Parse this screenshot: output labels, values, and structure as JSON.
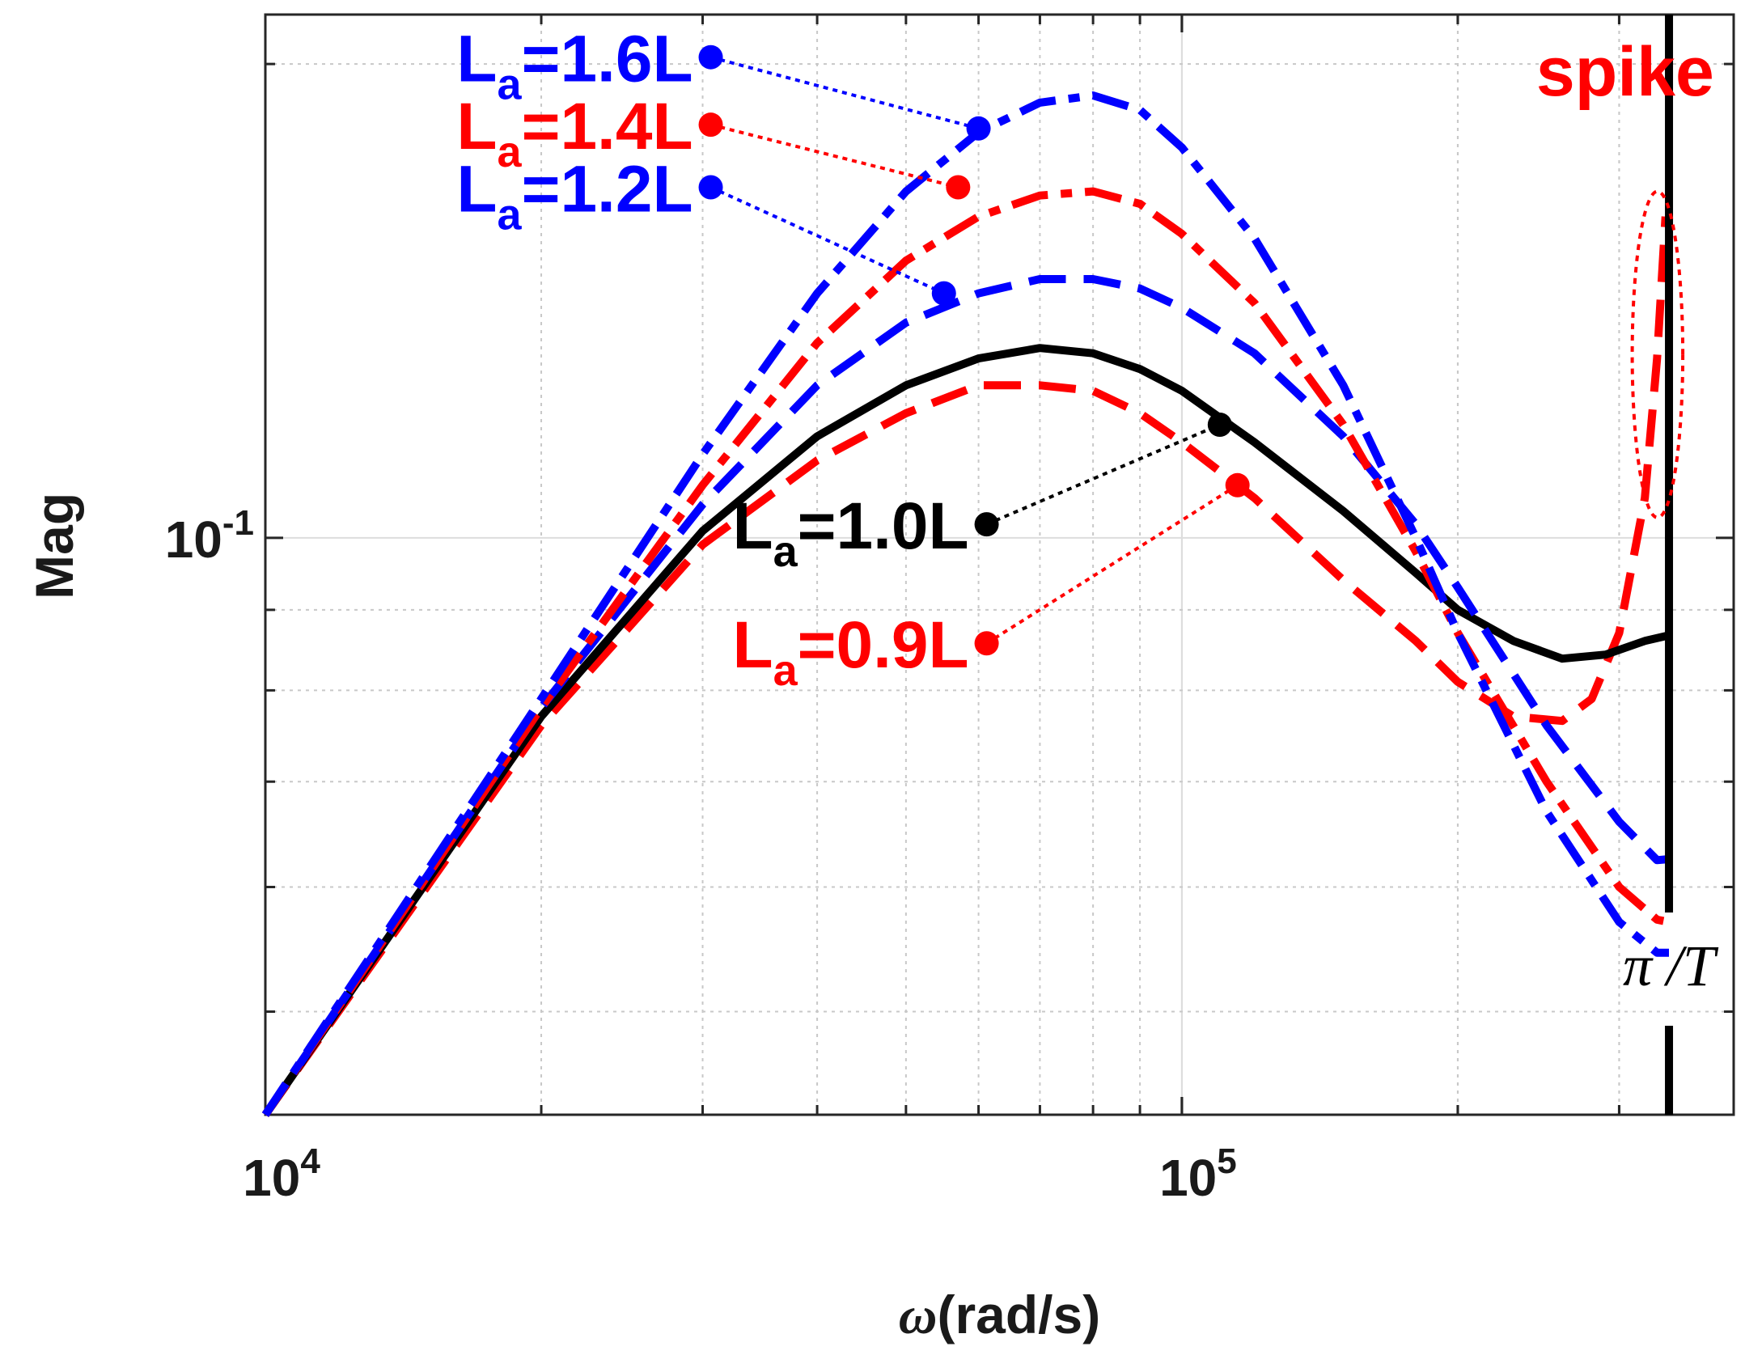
{
  "chart_data": {
    "type": "line",
    "title": "",
    "xlabel_symbol": "ω",
    "xlabel": "(rad/s)",
    "ylabel": "Mag",
    "xscale": "log",
    "yscale": "log",
    "xlim": [
      10000,
      400000
    ],
    "ylim": [
      0.043,
      0.215
    ],
    "grid": true,
    "x_ticks": [
      {
        "value": 10000,
        "base": "10",
        "exp": "4"
      },
      {
        "value": 100000,
        "base": "10",
        "exp": "5"
      }
    ],
    "y_ticks": [
      {
        "value": 0.1,
        "base": "10",
        "exp": "-1"
      }
    ],
    "series": [
      {
        "name": "1.6L",
        "color": "#0000ff",
        "style": "dashdot",
        "points": [
          [
            10000,
            0.043
          ],
          [
            20000,
            0.079
          ],
          [
            30000,
            0.113
          ],
          [
            40000,
            0.143
          ],
          [
            50000,
            0.166
          ],
          [
            60000,
            0.181
          ],
          [
            70000,
            0.189
          ],
          [
            80000,
            0.191
          ],
          [
            90000,
            0.187
          ],
          [
            100000,
            0.177
          ],
          [
            120000,
            0.155
          ],
          [
            150000,
            0.125
          ],
          [
            180000,
            0.1
          ],
          [
            200000,
            0.087
          ],
          [
            250000,
            0.067
          ],
          [
            300000,
            0.057
          ],
          [
            330000,
            0.0545
          ],
          [
            340000,
            0.0545
          ]
        ]
      },
      {
        "name": "1.4L",
        "color": "#ff0000",
        "style": "dashdot",
        "points": [
          [
            10000,
            0.043
          ],
          [
            20000,
            0.078
          ],
          [
            30000,
            0.108
          ],
          [
            40000,
            0.133
          ],
          [
            50000,
            0.15
          ],
          [
            60000,
            0.16
          ],
          [
            70000,
            0.165
          ],
          [
            80000,
            0.166
          ],
          [
            90000,
            0.163
          ],
          [
            100000,
            0.156
          ],
          [
            120000,
            0.141
          ],
          [
            150000,
            0.118
          ],
          [
            180000,
            0.098
          ],
          [
            200000,
            0.087
          ],
          [
            250000,
            0.07
          ],
          [
            300000,
            0.06
          ],
          [
            330000,
            0.0572
          ],
          [
            340000,
            0.057
          ]
        ]
      },
      {
        "name": "1.2L",
        "color": "#0000ff",
        "style": "dash",
        "points": [
          [
            10000,
            0.043
          ],
          [
            20000,
            0.078
          ],
          [
            30000,
            0.105
          ],
          [
            40000,
            0.125
          ],
          [
            50000,
            0.137
          ],
          [
            60000,
            0.143
          ],
          [
            70000,
            0.146
          ],
          [
            80000,
            0.146
          ],
          [
            90000,
            0.144
          ],
          [
            100000,
            0.14
          ],
          [
            120000,
            0.131
          ],
          [
            150000,
            0.116
          ],
          [
            180000,
            0.102
          ],
          [
            200000,
            0.093
          ],
          [
            250000,
            0.076
          ],
          [
            300000,
            0.066
          ],
          [
            330000,
            0.0624
          ],
          [
            340000,
            0.0625
          ]
        ]
      },
      {
        "name": "1.0L",
        "color": "#000000",
        "style": "solid",
        "points": [
          [
            10000,
            0.043
          ],
          [
            20000,
            0.077
          ],
          [
            30000,
            0.101
          ],
          [
            40000,
            0.116
          ],
          [
            50000,
            0.125
          ],
          [
            60000,
            0.13
          ],
          [
            70000,
            0.132
          ],
          [
            80000,
            0.131
          ],
          [
            90000,
            0.128
          ],
          [
            100000,
            0.124
          ],
          [
            120000,
            0.115
          ],
          [
            150000,
            0.104
          ],
          [
            180000,
            0.095
          ],
          [
            200000,
            0.09
          ],
          [
            230000,
            0.086
          ],
          [
            260000,
            0.0838
          ],
          [
            290000,
            0.0843
          ],
          [
            320000,
            0.086
          ],
          [
            340000,
            0.0867
          ]
        ]
      },
      {
        "name": "0.9L",
        "color": "#ff0000",
        "style": "dash",
        "points": [
          [
            10000,
            0.043
          ],
          [
            20000,
            0.076
          ],
          [
            30000,
            0.099
          ],
          [
            40000,
            0.112
          ],
          [
            50000,
            0.12
          ],
          [
            60000,
            0.125
          ],
          [
            70000,
            0.125
          ],
          [
            80000,
            0.124
          ],
          [
            90000,
            0.12
          ],
          [
            100000,
            0.115
          ],
          [
            120000,
            0.106
          ],
          [
            150000,
            0.094
          ],
          [
            180000,
            0.086
          ],
          [
            200000,
            0.081
          ],
          [
            230000,
            0.077
          ],
          [
            260000,
            0.0765
          ],
          [
            280000,
            0.079
          ],
          [
            300000,
            0.087
          ],
          [
            320000,
            0.106
          ],
          [
            330000,
            0.13
          ],
          [
            337000,
            0.16
          ]
        ]
      }
    ],
    "legend": [
      {
        "sub": "a",
        "value": "1.6L",
        "color": "#0000ff",
        "label_at": [
          30000,
          0.202
        ],
        "target": [
          60000,
          0.182
        ]
      },
      {
        "sub": "a",
        "value": "1.4L",
        "color": "#ff0000",
        "label_at": [
          30000,
          0.183
        ],
        "target": [
          57000,
          0.167
        ]
      },
      {
        "sub": "a",
        "value": "1.2L",
        "color": "#0000ff",
        "label_at": [
          30000,
          0.167
        ],
        "target": [
          55000,
          0.143
        ]
      },
      {
        "sub": "a",
        "value": "1.0L",
        "color": "#000000",
        "label_at": [
          60000,
          0.102
        ],
        "target": [
          110000,
          0.118
        ]
      },
      {
        "sub": "a",
        "value": "0.9L",
        "color": "#ff0000",
        "label_at": [
          60000,
          0.0857
        ],
        "target": [
          115000,
          0.108
        ]
      }
    ],
    "legend_prefix": "L",
    "legend_eq": "=",
    "annotations": {
      "spike_text": "spike",
      "spike_color": "#ff0000",
      "spike_ellipse": {
        "x": [
          310000,
          352000
        ],
        "y": [
          0.103,
          0.166
        ]
      },
      "nyquist_x": 340000,
      "nyquist_pi": "π",
      "nyquist_slash": " /",
      "nyquist_T": "T",
      "nyquist_color": "#000000"
    }
  }
}
